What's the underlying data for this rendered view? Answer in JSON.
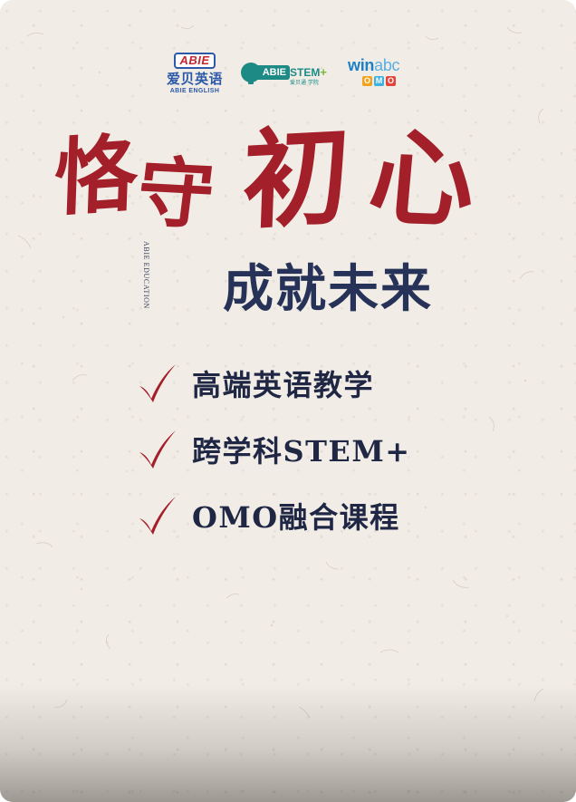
{
  "logos": {
    "abie": {
      "badge": "ABIE",
      "name_cn": "爱贝英语",
      "name_en": "ABIE ENGLISH"
    },
    "stem": {
      "badge": "ABIE",
      "word": "STEM",
      "plus": "+",
      "sub": "爱贝通 学院"
    },
    "winabc": {
      "w": "win",
      "abc": "abc",
      "omo": [
        "O",
        "M",
        "O"
      ],
      "omo_colors": [
        "#f3a21c",
        "#3bb1e0",
        "#e2453c"
      ]
    }
  },
  "headline": {
    "brush_chars": [
      "恪",
      "守",
      "初",
      "心"
    ],
    "vertical_text": "ABIE EDUCATION",
    "subtitle": "成就未来"
  },
  "features": [
    {
      "label": "高端英语教学"
    },
    {
      "label": "跨学科STEM+"
    },
    {
      "label": "OMO融合课程"
    }
  ],
  "colors": {
    "brush_red": "#a3202a",
    "navy": "#263257",
    "paper": "#f1ede6",
    "abie_blue": "#2c59a8",
    "stem_teal": "#1d8a86"
  },
  "icons": {
    "feature_marker": "checkmark-icon"
  }
}
